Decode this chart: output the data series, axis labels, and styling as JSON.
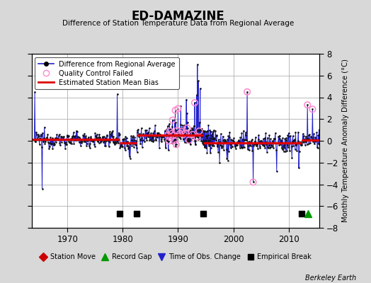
{
  "title": "ED-DAMAZINE",
  "subtitle": "Difference of Station Temperature Data from Regional Average",
  "ylabel": "Monthly Temperature Anomaly Difference (°C)",
  "credit": "Berkeley Earth",
  "xlim": [
    1963.5,
    2015.5
  ],
  "ylim": [
    -8,
    8
  ],
  "yticks": [
    -8,
    -6,
    -4,
    -2,
    0,
    2,
    4,
    6,
    8
  ],
  "xticks": [
    1970,
    1980,
    1990,
    2000,
    2010
  ],
  "background_color": "#d8d8d8",
  "plot_bg_color": "#ffffff",
  "grid_color": "#b0b0b0",
  "line_color": "#2222cc",
  "marker_color": "#111111",
  "bias_color": "#dd0000",
  "qc_color": "#ff88cc",
  "empirical_breaks": [
    1979.5,
    1982.5,
    1994.5,
    2012.3
  ],
  "record_gaps": [
    2013.5
  ],
  "time_of_obs": [],
  "station_moves": [],
  "segments": [
    {
      "start": 1963.5,
      "end": 1979.5,
      "bias": 0.12
    },
    {
      "start": 1979.5,
      "end": 1982.5,
      "bias": -0.22
    },
    {
      "start": 1982.5,
      "end": 1994.5,
      "bias": 0.52
    },
    {
      "start": 1994.5,
      "end": 2012.3,
      "bias": -0.18
    },
    {
      "start": 2012.3,
      "end": 2015.5,
      "bias": 0.08
    }
  ]
}
